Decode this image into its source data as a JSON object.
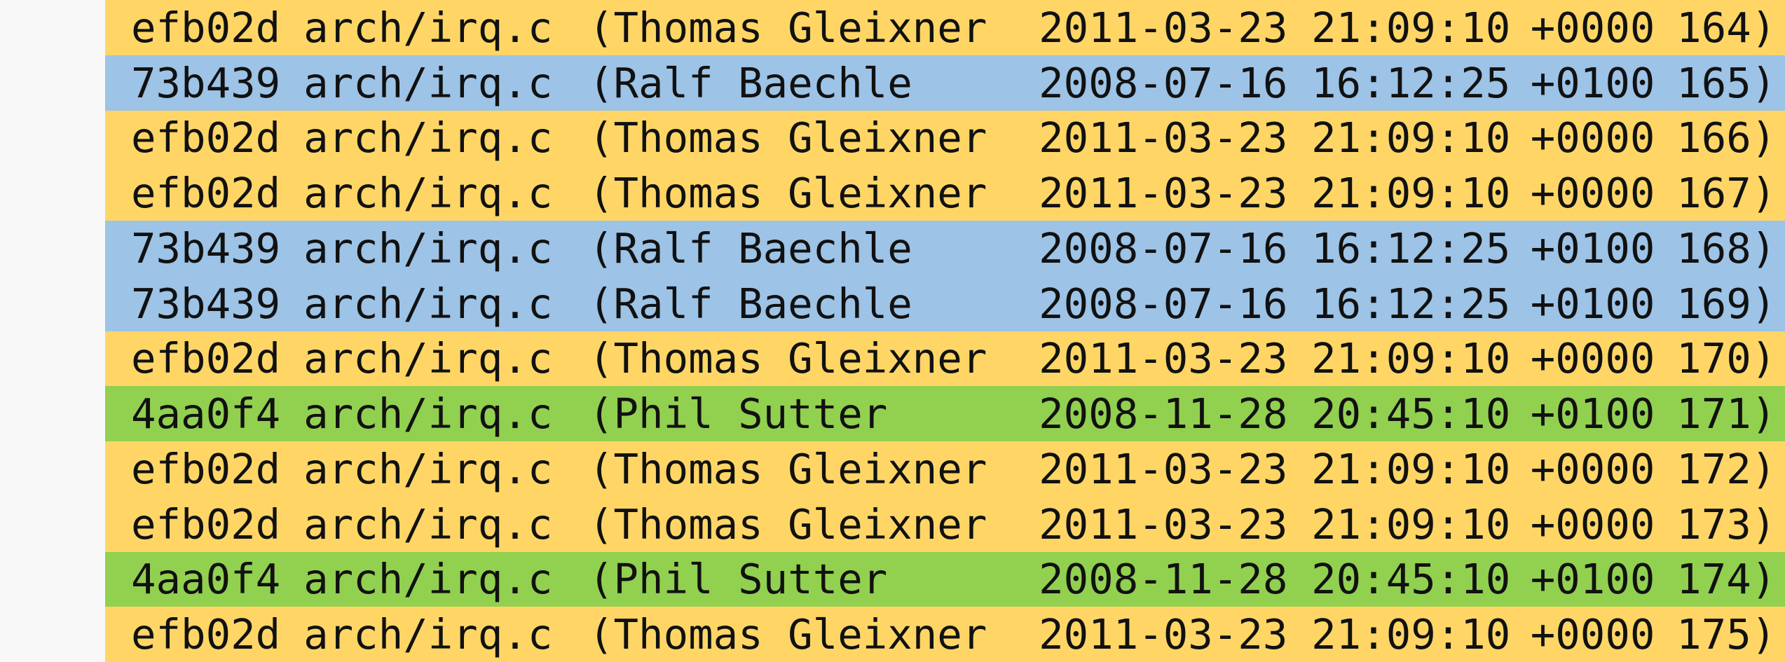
{
  "colors": {
    "Thomas Gleixner": "#ffd666",
    "Ralf Baechle": "#9dc3e6",
    "Phil Sutter": "#92d050"
  },
  "blame": {
    "rows": [
      {
        "hash": "efb02d",
        "file": "arch/irq.c",
        "author": "(Thomas Gleixner",
        "date": "2011-03-23",
        "time": "21:09:10",
        "timezone": "+0000",
        "line": "164)"
      },
      {
        "hash": "73b439",
        "file": "arch/irq.c",
        "author": "(Ralf Baechle",
        "date": "2008-07-16",
        "time": "16:12:25",
        "timezone": "+0100",
        "line": "165)"
      },
      {
        "hash": "efb02d",
        "file": "arch/irq.c",
        "author": "(Thomas Gleixner",
        "date": "2011-03-23",
        "time": "21:09:10",
        "timezone": "+0000",
        "line": "166)"
      },
      {
        "hash": "efb02d",
        "file": "arch/irq.c",
        "author": "(Thomas Gleixner",
        "date": "2011-03-23",
        "time": "21:09:10",
        "timezone": "+0000",
        "line": "167)"
      },
      {
        "hash": "73b439",
        "file": "arch/irq.c",
        "author": "(Ralf Baechle",
        "date": "2008-07-16",
        "time": "16:12:25",
        "timezone": "+0100",
        "line": "168)"
      },
      {
        "hash": "73b439",
        "file": "arch/irq.c",
        "author": "(Ralf Baechle",
        "date": "2008-07-16",
        "time": "16:12:25",
        "timezone": "+0100",
        "line": "169)"
      },
      {
        "hash": "efb02d",
        "file": "arch/irq.c",
        "author": "(Thomas Gleixner",
        "date": "2011-03-23",
        "time": "21:09:10",
        "timezone": "+0000",
        "line": "170)"
      },
      {
        "hash": "4aa0f4",
        "file": "arch/irq.c",
        "author": "(Phil Sutter",
        "date": "2008-11-28",
        "time": "20:45:10",
        "timezone": "+0100",
        "line": "171)"
      },
      {
        "hash": "efb02d",
        "file": "arch/irq.c",
        "author": "(Thomas Gleixner",
        "date": "2011-03-23",
        "time": "21:09:10",
        "timezone": "+0000",
        "line": "172)"
      },
      {
        "hash": "efb02d",
        "file": "arch/irq.c",
        "author": "(Thomas Gleixner",
        "date": "2011-03-23",
        "time": "21:09:10",
        "timezone": "+0000",
        "line": "173)"
      },
      {
        "hash": "4aa0f4",
        "file": "arch/irq.c",
        "author": "(Phil Sutter",
        "date": "2008-11-28",
        "time": "20:45:10",
        "timezone": "+0100",
        "line": "174)"
      },
      {
        "hash": "efb02d",
        "file": "arch/irq.c",
        "author": "(Thomas Gleixner",
        "date": "2011-03-23",
        "time": "21:09:10",
        "timezone": "+0000",
        "line": "175)"
      }
    ]
  }
}
